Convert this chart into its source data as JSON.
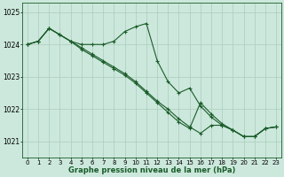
{
  "background_color": "#cce8dc",
  "grid_color": "#aaccbb",
  "line_color": "#1a5c2a",
  "title": "Graphe pression niveau de la mer (hPa)",
  "xlim": [
    -0.5,
    23.5
  ],
  "ylim": [
    1020.5,
    1025.3
  ],
  "yticks": [
    1021,
    1022,
    1023,
    1024,
    1025
  ],
  "xtick_labels": [
    "0",
    "1",
    "2",
    "3",
    "4",
    "5",
    "6",
    "7",
    "8",
    "9",
    "10",
    "11",
    "12",
    "13",
    "14",
    "15",
    "16",
    "17",
    "18",
    "19",
    "20",
    "21",
    "22",
    "23"
  ],
  "series": [
    {
      "x": [
        0,
        1,
        2,
        3,
        4,
        5,
        6,
        7,
        8,
        9,
        10,
        11,
        12,
        13,
        14,
        15,
        16,
        17,
        18,
        19,
        20,
        21,
        22,
        23
      ],
      "y": [
        1024.0,
        1024.1,
        1024.5,
        1024.3,
        1024.1,
        1024.0,
        1024.0,
        1024.0,
        1024.1,
        1024.4,
        1024.55,
        1024.65,
        1023.5,
        1022.85,
        1022.5,
        1022.65,
        1022.1,
        1021.75,
        1021.5,
        1021.35,
        1021.15,
        1021.15,
        1021.4,
        1021.45
      ]
    },
    {
      "x": [
        0,
        1,
        2,
        3,
        4,
        5,
        6,
        7,
        8,
        9,
        10,
        11,
        12,
        13,
        14,
        15,
        16,
        17,
        18,
        19,
        20,
        21,
        22,
        23
      ],
      "y": [
        1024.0,
        1024.1,
        1024.5,
        1024.3,
        1024.1,
        1023.9,
        1023.7,
        1023.5,
        1023.3,
        1023.1,
        1022.85,
        1022.55,
        1022.25,
        1022.0,
        1021.7,
        1021.45,
        1021.25,
        1021.5,
        1021.5,
        1021.35,
        1021.15,
        1021.15,
        1021.4,
        1021.45
      ]
    },
    {
      "x": [
        0,
        1,
        2,
        3,
        4,
        5,
        6,
        7,
        8,
        9,
        10,
        11,
        12,
        13,
        14,
        15,
        16,
        17,
        18,
        19,
        20,
        21,
        22,
        23
      ],
      "y": [
        1024.0,
        1024.1,
        1024.5,
        1024.3,
        1024.1,
        1023.85,
        1023.65,
        1023.45,
        1023.25,
        1023.05,
        1022.8,
        1022.5,
        1022.2,
        1021.9,
        1021.6,
        1021.4,
        1022.2,
        1021.85,
        1021.55,
        1021.35,
        1021.15,
        1021.15,
        1021.4,
        1021.45
      ]
    }
  ],
  "marker": "+",
  "markersize": 3,
  "linewidth": 0.8,
  "title_fontsize": 6.0,
  "tick_fontsize": 5.0,
  "y_tick_fontsize": 5.5
}
